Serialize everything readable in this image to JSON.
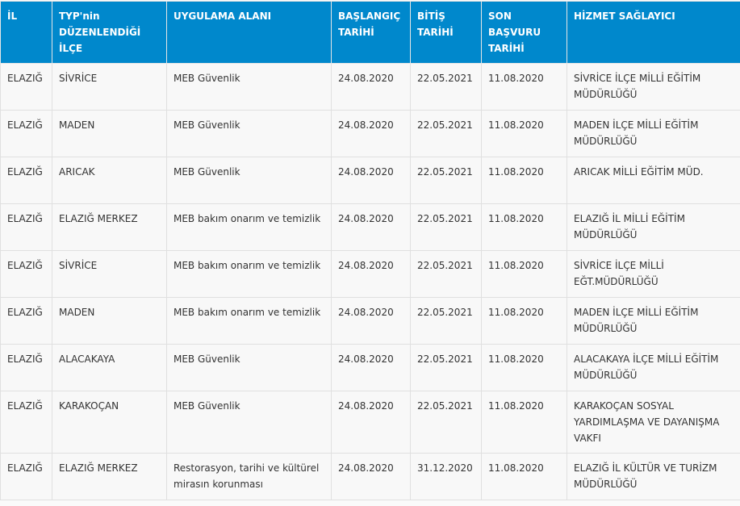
{
  "table": {
    "headers": [
      "İL",
      "TYP'nin DÜZENLENDİĞİ İLÇE",
      "UYGULAMA ALANI",
      "BAŞLANGIÇ TARİHİ",
      "BİTİŞ TARİHİ",
      "SON BAŞVURU TARİHİ",
      "HİZMET SAĞLAYICI"
    ],
    "header_color": "#0088cc",
    "rows": [
      [
        "ELAZIĞ",
        "SİVRİCE",
        "MEB Güvenlik",
        "24.08.2020",
        "22.05.2021",
        "11.08.2020",
        "SİVRİCE İLÇE MİLLİ EĞİTİM MÜDÜRLÜĞÜ"
      ],
      [
        "ELAZIĞ",
        "MADEN",
        "MEB Güvenlik",
        "24.08.2020",
        "22.05.2021",
        "11.08.2020",
        "MADEN İLÇE MİLLİ EĞİTİM MÜDÜRLÜĞÜ"
      ],
      [
        "ELAZIĞ",
        "ARICAK",
        "MEB Güvenlik",
        "24.08.2020",
        "22.05.2021",
        "11.08.2020",
        "ARICAK MİLLİ EĞİTİM MÜD."
      ],
      [
        "ELAZIĞ",
        "ELAZIĞ MERKEZ",
        "MEB bakım onarım ve temizlik",
        "24.08.2020",
        "22.05.2021",
        "11.08.2020",
        "ELAZIĞ İL MİLLİ EĞİTİM MÜDÜRLÜĞÜ"
      ],
      [
        "ELAZIĞ",
        "SİVRİCE",
        "MEB bakım onarım ve temizlik",
        "24.08.2020",
        "22.05.2021",
        "11.08.2020",
        "SİVRİCE İLÇE MİLLİ EĞT.MÜDÜRLÜĞÜ"
      ],
      [
        "ELAZIĞ",
        "MADEN",
        "MEB bakım onarım ve temizlik",
        "24.08.2020",
        "22.05.2021",
        "11.08.2020",
        "MADEN İLÇE MİLLİ EĞİTİM MÜDÜRLÜĞÜ"
      ],
      [
        "ELAZIĞ",
        "ALACAKAYA",
        "MEB Güvenlik",
        "24.08.2020",
        "22.05.2021",
        "11.08.2020",
        "ALACAKAYA İLÇE MİLLİ EĞİTİM MÜDÜRLÜĞÜ"
      ],
      [
        "ELAZIĞ",
        "KARAKOÇAN",
        "MEB Güvenlik",
        "24.08.2020",
        "22.05.2021",
        "11.08.2020",
        "KARAKOÇAN SOSYAL YARDIMLAŞMA VE DAYANIŞMA VAKFI"
      ],
      [
        "ELAZIĞ",
        "ELAZIĞ MERKEZ",
        "Restorasyon, tarihi ve kültürel mirasın korunması",
        "24.08.2020",
        "31.12.2020",
        "11.08.2020",
        "ELAZIĞ İL KÜLTÜR VE TURİZM MÜDÜRLÜĞÜ"
      ]
    ]
  }
}
